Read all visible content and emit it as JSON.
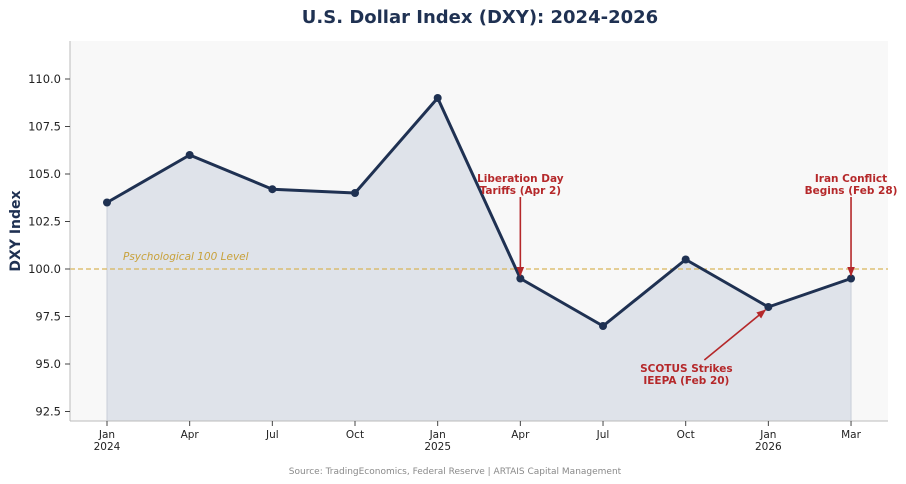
{
  "chart_data": {
    "type": "area",
    "title": "U.S. Dollar Index (DXY): 2024-2026",
    "xlabel": "",
    "ylabel": "DXY Index",
    "ylim": [
      92,
      112
    ],
    "yticks": [
      "92.5",
      "95.0",
      "97.5",
      "100.0",
      "102.5",
      "105.0",
      "107.5",
      "110.0"
    ],
    "ytick_values": [
      92.5,
      95.0,
      97.5,
      100.0,
      102.5,
      105.0,
      107.5,
      110.0
    ],
    "categories": [
      [
        "Jan",
        "2024"
      ],
      [
        "Apr",
        ""
      ],
      [
        "Jul",
        ""
      ],
      [
        "Oct",
        ""
      ],
      [
        "Jan",
        "2025"
      ],
      [
        "Apr",
        ""
      ],
      [
        "Jul",
        ""
      ],
      [
        "Oct",
        ""
      ],
      [
        "Jan",
        "2026"
      ],
      [
        "Mar",
        ""
      ]
    ],
    "values": [
      103.5,
      106.0,
      104.2,
      104.0,
      109.0,
      99.5,
      97.0,
      100.5,
      98.0,
      99.5
    ],
    "reference_line": {
      "value": 100.0,
      "label": "Psychological 100 Level"
    },
    "annotations": [
      {
        "lines": [
          "Liberation Day",
          "Tariffs (Apr 2)"
        ],
        "point_index": 5,
        "position": "above"
      },
      {
        "lines": [
          "Iran Conflict",
          "Begins (Feb 28)"
        ],
        "point_index": 9,
        "position": "above"
      },
      {
        "lines": [
          "SCOTUS Strikes",
          "IEEPA (Feb 20)"
        ],
        "point_index": 8,
        "position": "below-left"
      }
    ],
    "grid": false,
    "colors": {
      "line": "#1f3152",
      "fill": "#dfe3ea",
      "reference": "#d8b45a",
      "annotation": "#b5282a",
      "plot_bg": "#f8f8f8"
    }
  },
  "footer": {
    "source": "Source: TradingEconomics, Federal Reserve | ARTAIS Capital Management"
  }
}
